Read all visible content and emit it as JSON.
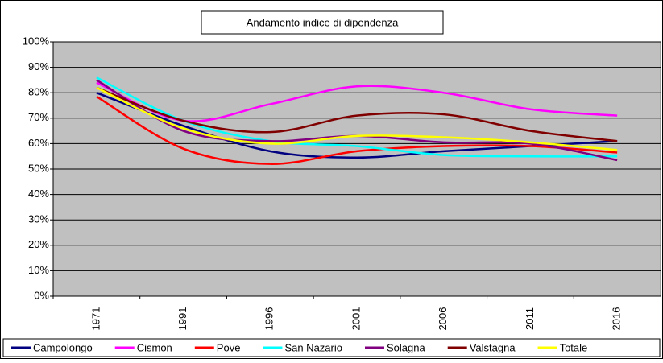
{
  "chart_data": {
    "type": "line",
    "title": "Andamento indice di dipendenza",
    "categories": [
      "1971",
      "1991",
      "1996",
      "2001",
      "2006",
      "2011",
      "2016"
    ],
    "series": [
      {
        "name": "Campolongo",
        "color": "#000080",
        "values": [
          80,
          67,
          57,
          54.5,
          57,
          59,
          61
        ]
      },
      {
        "name": "Cismon",
        "color": "#ff00ff",
        "values": [
          84,
          69,
          75.5,
          82.5,
          80,
          73.5,
          71
        ]
      },
      {
        "name": "Pove",
        "color": "#ff0000",
        "values": [
          78.5,
          58,
          52,
          57,
          59,
          59,
          56.5
        ]
      },
      {
        "name": "San Nazario",
        "color": "#00ffff",
        "values": [
          86,
          69,
          61,
          59,
          55.5,
          55,
          55
        ]
      },
      {
        "name": "Solagna",
        "color": "#800080",
        "values": [
          85,
          65,
          61,
          63,
          60.5,
          60,
          53.5
        ]
      },
      {
        "name": "Valstagna",
        "color": "#800000",
        "values": [
          82,
          69,
          64.5,
          71,
          71.5,
          65,
          61
        ]
      },
      {
        "name": "Totale",
        "color": "#ffff00",
        "values": [
          82,
          66,
          60,
          63,
          62.5,
          60.5,
          57.5
        ]
      }
    ],
    "ylim": [
      0,
      100
    ],
    "yticks": [
      {
        "value": 0,
        "label": "0%"
      },
      {
        "value": 10,
        "label": "10%"
      },
      {
        "value": 20,
        "label": "20%"
      },
      {
        "value": 30,
        "label": "30%"
      },
      {
        "value": 40,
        "label": "40%"
      },
      {
        "value": 50,
        "label": "50%"
      },
      {
        "value": 60,
        "label": "60%"
      },
      {
        "value": 70,
        "label": "70%"
      },
      {
        "value": 80,
        "label": "80%"
      },
      {
        "value": 90,
        "label": "90%"
      },
      {
        "value": 100,
        "label": "100%"
      }
    ],
    "grid": true,
    "legend": "bottom",
    "plot_background": "#c0c0c0"
  }
}
